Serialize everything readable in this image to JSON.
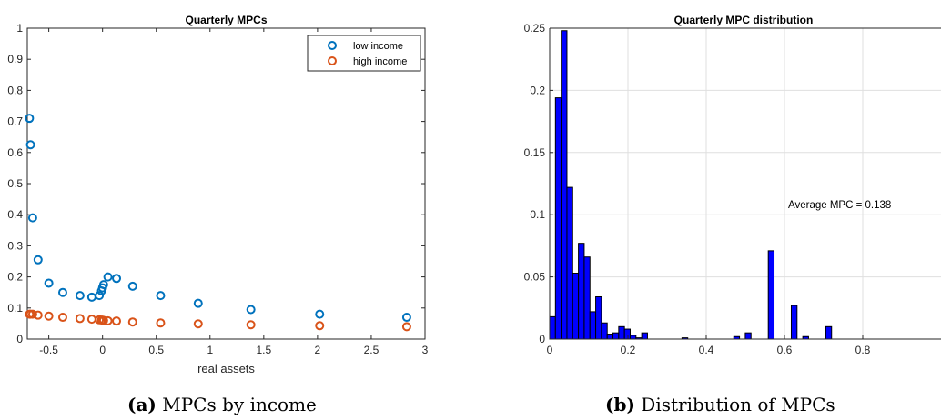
{
  "chart_data": [
    {
      "type": "scatter",
      "title": "Quarterly MPCs",
      "xlabel": "real assets",
      "ylabel": "",
      "xlim": [
        -0.7,
        3
      ],
      "ylim": [
        0,
        1
      ],
      "xticks": [
        "-0.5",
        "0",
        "0.5",
        "1",
        "1.5",
        "2",
        "2.5",
        "3"
      ],
      "yticks": [
        "0",
        "0.1",
        "0.2",
        "0.3",
        "0.4",
        "0.5",
        "0.6",
        "0.7",
        "0.8",
        "0.9",
        "1"
      ],
      "grid": false,
      "legend_position": "top-right",
      "series": [
        {
          "name": "low income",
          "color": "#0072BD",
          "x": [
            -0.68,
            -0.67,
            -0.65,
            -0.6,
            -0.5,
            -0.37,
            -0.21,
            -0.1,
            -0.03,
            -0.01,
            0.0,
            0.01,
            0.05,
            0.13,
            0.28,
            0.54,
            0.89,
            1.38,
            2.02,
            2.83
          ],
          "y": [
            0.71,
            0.625,
            0.39,
            0.255,
            0.18,
            0.15,
            0.14,
            0.135,
            0.14,
            0.155,
            0.165,
            0.175,
            0.2,
            0.195,
            0.17,
            0.14,
            0.115,
            0.095,
            0.08,
            0.07
          ]
        },
        {
          "name": "high income",
          "color": "#D95319",
          "x": [
            -0.68,
            -0.67,
            -0.65,
            -0.6,
            -0.5,
            -0.37,
            -0.21,
            -0.1,
            -0.03,
            -0.01,
            0.0,
            0.01,
            0.05,
            0.13,
            0.28,
            0.54,
            0.89,
            1.38,
            2.02,
            2.83
          ],
          "y": [
            0.08,
            0.08,
            0.08,
            0.077,
            0.074,
            0.07,
            0.066,
            0.064,
            0.062,
            0.061,
            0.061,
            0.06,
            0.059,
            0.058,
            0.055,
            0.052,
            0.049,
            0.046,
            0.043,
            0.04
          ]
        }
      ]
    },
    {
      "type": "bar",
      "title": "Quarterly MPC distribution",
      "xlabel": "",
      "ylabel": "",
      "xlim": [
        0,
        1
      ],
      "ylim": [
        0,
        0.25
      ],
      "xticks": [
        "0",
        "0.2",
        "0.4",
        "0.6",
        "0.8"
      ],
      "yticks": [
        "0",
        "0.05",
        "0.1",
        "0.15",
        "0.2",
        "0.25"
      ],
      "grid": true,
      "bin_width": 0.0147,
      "bin_start": 0,
      "bar_color": "#0000FF",
      "values": [
        0.018,
        0.194,
        0.248,
        0.122,
        0.053,
        0.077,
        0.066,
        0.022,
        0.034,
        0.013,
        0.004,
        0.005,
        0.01,
        0.008,
        0.003,
        0.001,
        0.005,
        0,
        0,
        0,
        0,
        0,
        0,
        0.001,
        0,
        0,
        0,
        0,
        0,
        0,
        0,
        0,
        0.002,
        0,
        0.005,
        0,
        0,
        0,
        0.071,
        0,
        0,
        0,
        0.027,
        0,
        0.002,
        0,
        0,
        0,
        0.01,
        0,
        0,
        0,
        0,
        0,
        0,
        0,
        0,
        0,
        0,
        0,
        0,
        0,
        0,
        0,
        0,
        0,
        0,
        0
      ],
      "annotation": "Average MPC = 0.138"
    }
  ],
  "captions": [
    {
      "label": "(a)",
      "text": "MPCs by income"
    },
    {
      "label": "(b)",
      "text": "Distribution of MPCs"
    }
  ]
}
